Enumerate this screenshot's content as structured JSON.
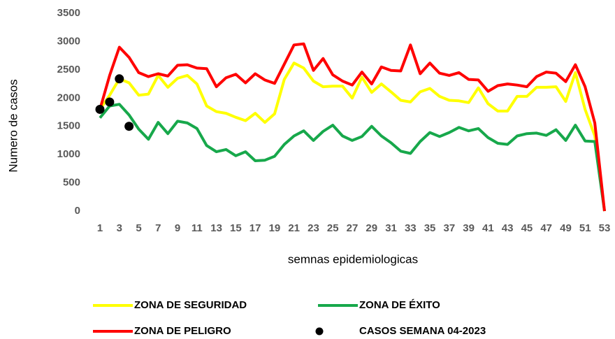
{
  "chart_data": {
    "type": "line",
    "xlabel": "semnas epidemiologicas",
    "ylabel": "Numero de casos",
    "categories": [
      1,
      null,
      3,
      null,
      5,
      null,
      7,
      null,
      9,
      null,
      11,
      null,
      13,
      null,
      15,
      null,
      17,
      null,
      19,
      null,
      21,
      null,
      23,
      null,
      25,
      null,
      27,
      null,
      29,
      null,
      31,
      null,
      33,
      null,
      35,
      null,
      37,
      null,
      39,
      null,
      41,
      null,
      43,
      null,
      45,
      null,
      47,
      null,
      49,
      null,
      51,
      null,
      53
    ],
    "ylim": [
      0,
      3500
    ],
    "yticks": [
      0,
      500,
      1000,
      1500,
      2000,
      2500,
      3000,
      3500
    ],
    "grid": false,
    "legend": "bottom",
    "series": [
      {
        "name": "ZONA DE SEGURIDAD",
        "color": "#ffff00",
        "values": [
          1800,
          2050,
          2340,
          2270,
          2050,
          2070,
          2400,
          2190,
          2350,
          2400,
          2250,
          1860,
          1760,
          1730,
          1660,
          1600,
          1730,
          1570,
          1720,
          2330,
          2620,
          2530,
          2300,
          2200,
          2210,
          2210,
          2000,
          2370,
          2100,
          2250,
          2110,
          1960,
          1930,
          2110,
          2170,
          2030,
          1960,
          1950,
          1920,
          2180,
          1900,
          1770,
          1770,
          2030,
          2030,
          2190,
          2190,
          2200,
          1940,
          2450,
          1800,
          1330,
          0
        ]
      },
      {
        "name": "ZONA DE ÉXITO",
        "color": "#17a84b",
        "values": [
          1650,
          1860,
          1890,
          1700,
          1450,
          1270,
          1570,
          1370,
          1590,
          1560,
          1460,
          1160,
          1050,
          1090,
          980,
          1050,
          890,
          900,
          970,
          1180,
          1330,
          1420,
          1250,
          1410,
          1520,
          1330,
          1250,
          1320,
          1500,
          1330,
          1210,
          1060,
          1020,
          1230,
          1390,
          1320,
          1390,
          1480,
          1420,
          1460,
          1300,
          1200,
          1180,
          1330,
          1370,
          1380,
          1340,
          1440,
          1250,
          1520,
          1240,
          1230,
          0
        ]
      },
      {
        "name": "ZONA DE PELIGRO",
        "color": "#ff0000",
        "values": [
          1800,
          2400,
          2900,
          2720,
          2450,
          2380,
          2430,
          2390,
          2580,
          2590,
          2530,
          2520,
          2200,
          2360,
          2420,
          2270,
          2430,
          2320,
          2260,
          2600,
          2940,
          2960,
          2490,
          2700,
          2410,
          2300,
          2230,
          2460,
          2250,
          2550,
          2490,
          2480,
          2940,
          2430,
          2620,
          2440,
          2400,
          2450,
          2330,
          2320,
          2120,
          2220,
          2250,
          2230,
          2200,
          2380,
          2460,
          2440,
          2290,
          2590,
          2200,
          1560,
          0
        ]
      },
      {
        "name": "CASOS SEMANA 04-2023",
        "color": "#000000",
        "markers_only": true,
        "values": [
          1800,
          1930,
          2340,
          1500,
          null,
          null,
          null,
          null,
          null,
          null,
          null,
          null,
          null,
          null,
          null,
          null,
          null,
          null,
          null,
          null,
          null,
          null,
          null,
          null,
          null,
          null,
          null,
          null,
          null,
          null,
          null,
          null,
          null,
          null,
          null,
          null,
          null,
          null,
          null,
          null,
          null,
          null,
          null,
          null,
          null,
          null,
          null,
          null,
          null,
          null,
          null,
          null,
          null
        ]
      }
    ]
  }
}
